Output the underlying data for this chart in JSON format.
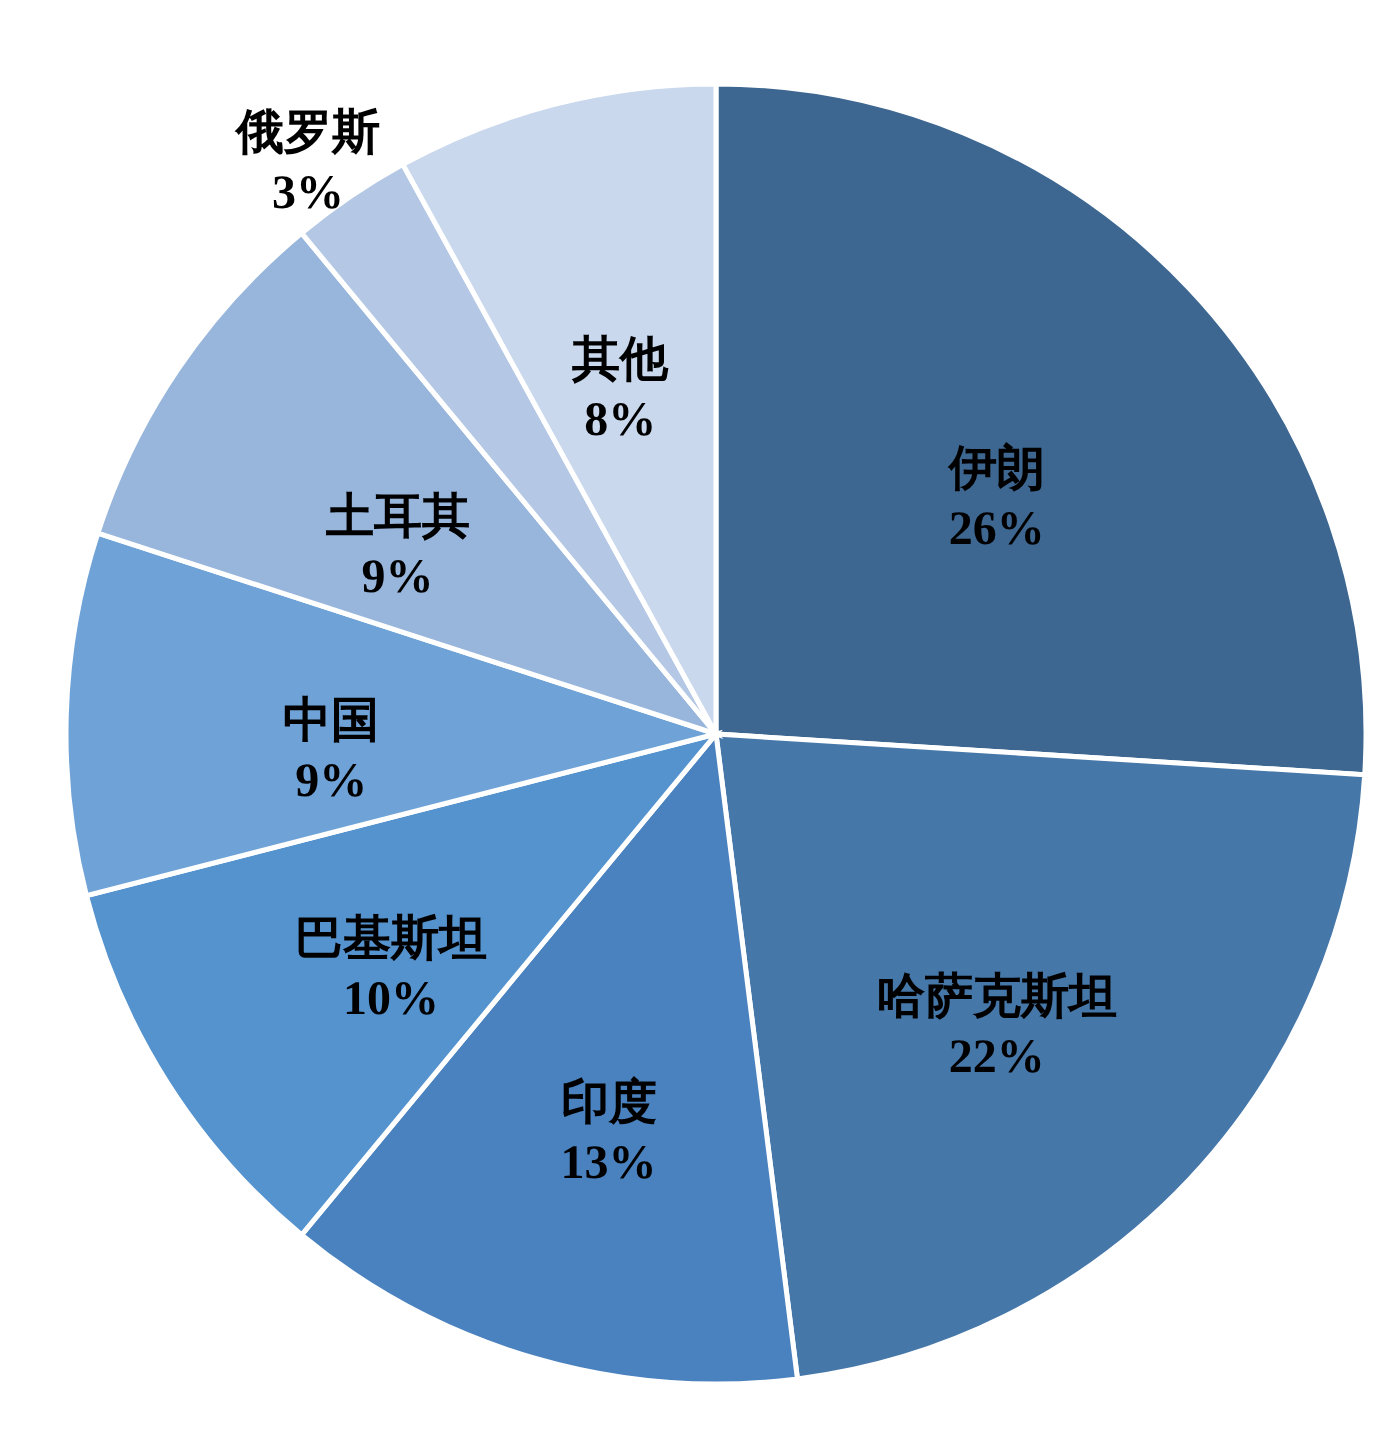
{
  "chart_data": {
    "type": "pie",
    "categories": [
      "伊朗",
      "哈萨克斯坦",
      "印度",
      "巴基斯坦",
      "中国",
      "土耳其",
      "俄罗斯",
      "其他"
    ],
    "values": [
      26,
      22,
      13,
      10,
      9,
      9,
      3,
      8
    ],
    "value_labels": [
      "26%",
      "22%",
      "13%",
      "10%",
      "9%",
      "9%",
      "3%",
      "8%"
    ],
    "colors": [
      "#3d6791",
      "#4677a9",
      "#4a82bf",
      "#5593cf",
      "#6fa3d7",
      "#98b6dc",
      "#b4c8e5",
      "#cad8ee"
    ],
    "legend": false
  }
}
